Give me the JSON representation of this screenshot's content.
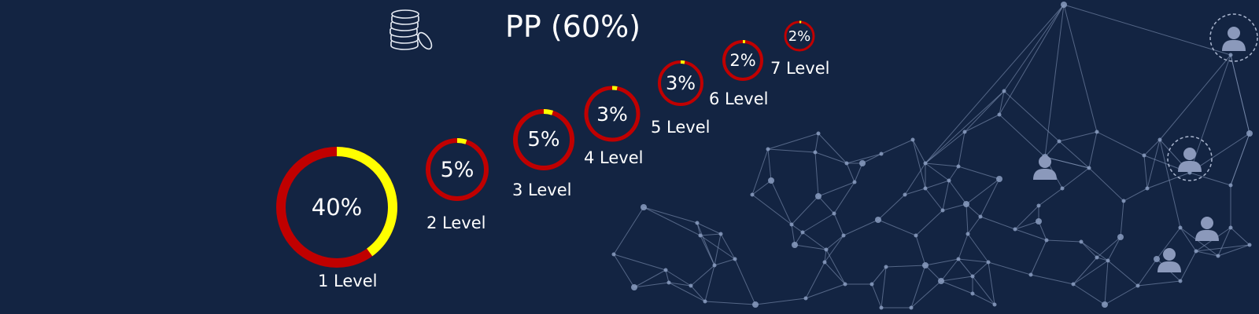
{
  "title": "PP (60%)",
  "colors": {
    "background": "#132442",
    "ring_base": "#c00000",
    "ring_fill": "#ffff00",
    "network": "#8a9cc0"
  },
  "coins_icon": "coin-stack-icon",
  "levels": [
    {
      "percent_label": "40%",
      "level_label": "1 Level",
      "fill_fraction": 0.4
    },
    {
      "percent_label": "5%",
      "level_label": "2 Level",
      "fill_fraction": 0.05
    },
    {
      "percent_label": "5%",
      "level_label": "3 Level",
      "fill_fraction": 0.05
    },
    {
      "percent_label": "3%",
      "level_label": "4 Level",
      "fill_fraction": 0.03
    },
    {
      "percent_label": "3%",
      "level_label": "5 Level",
      "fill_fraction": 0.03
    },
    {
      "percent_label": "2%",
      "level_label": "6 Level",
      "fill_fraction": 0.02
    },
    {
      "percent_label": "2%",
      "level_label": "7 Level",
      "fill_fraction": 0.02
    }
  ]
}
